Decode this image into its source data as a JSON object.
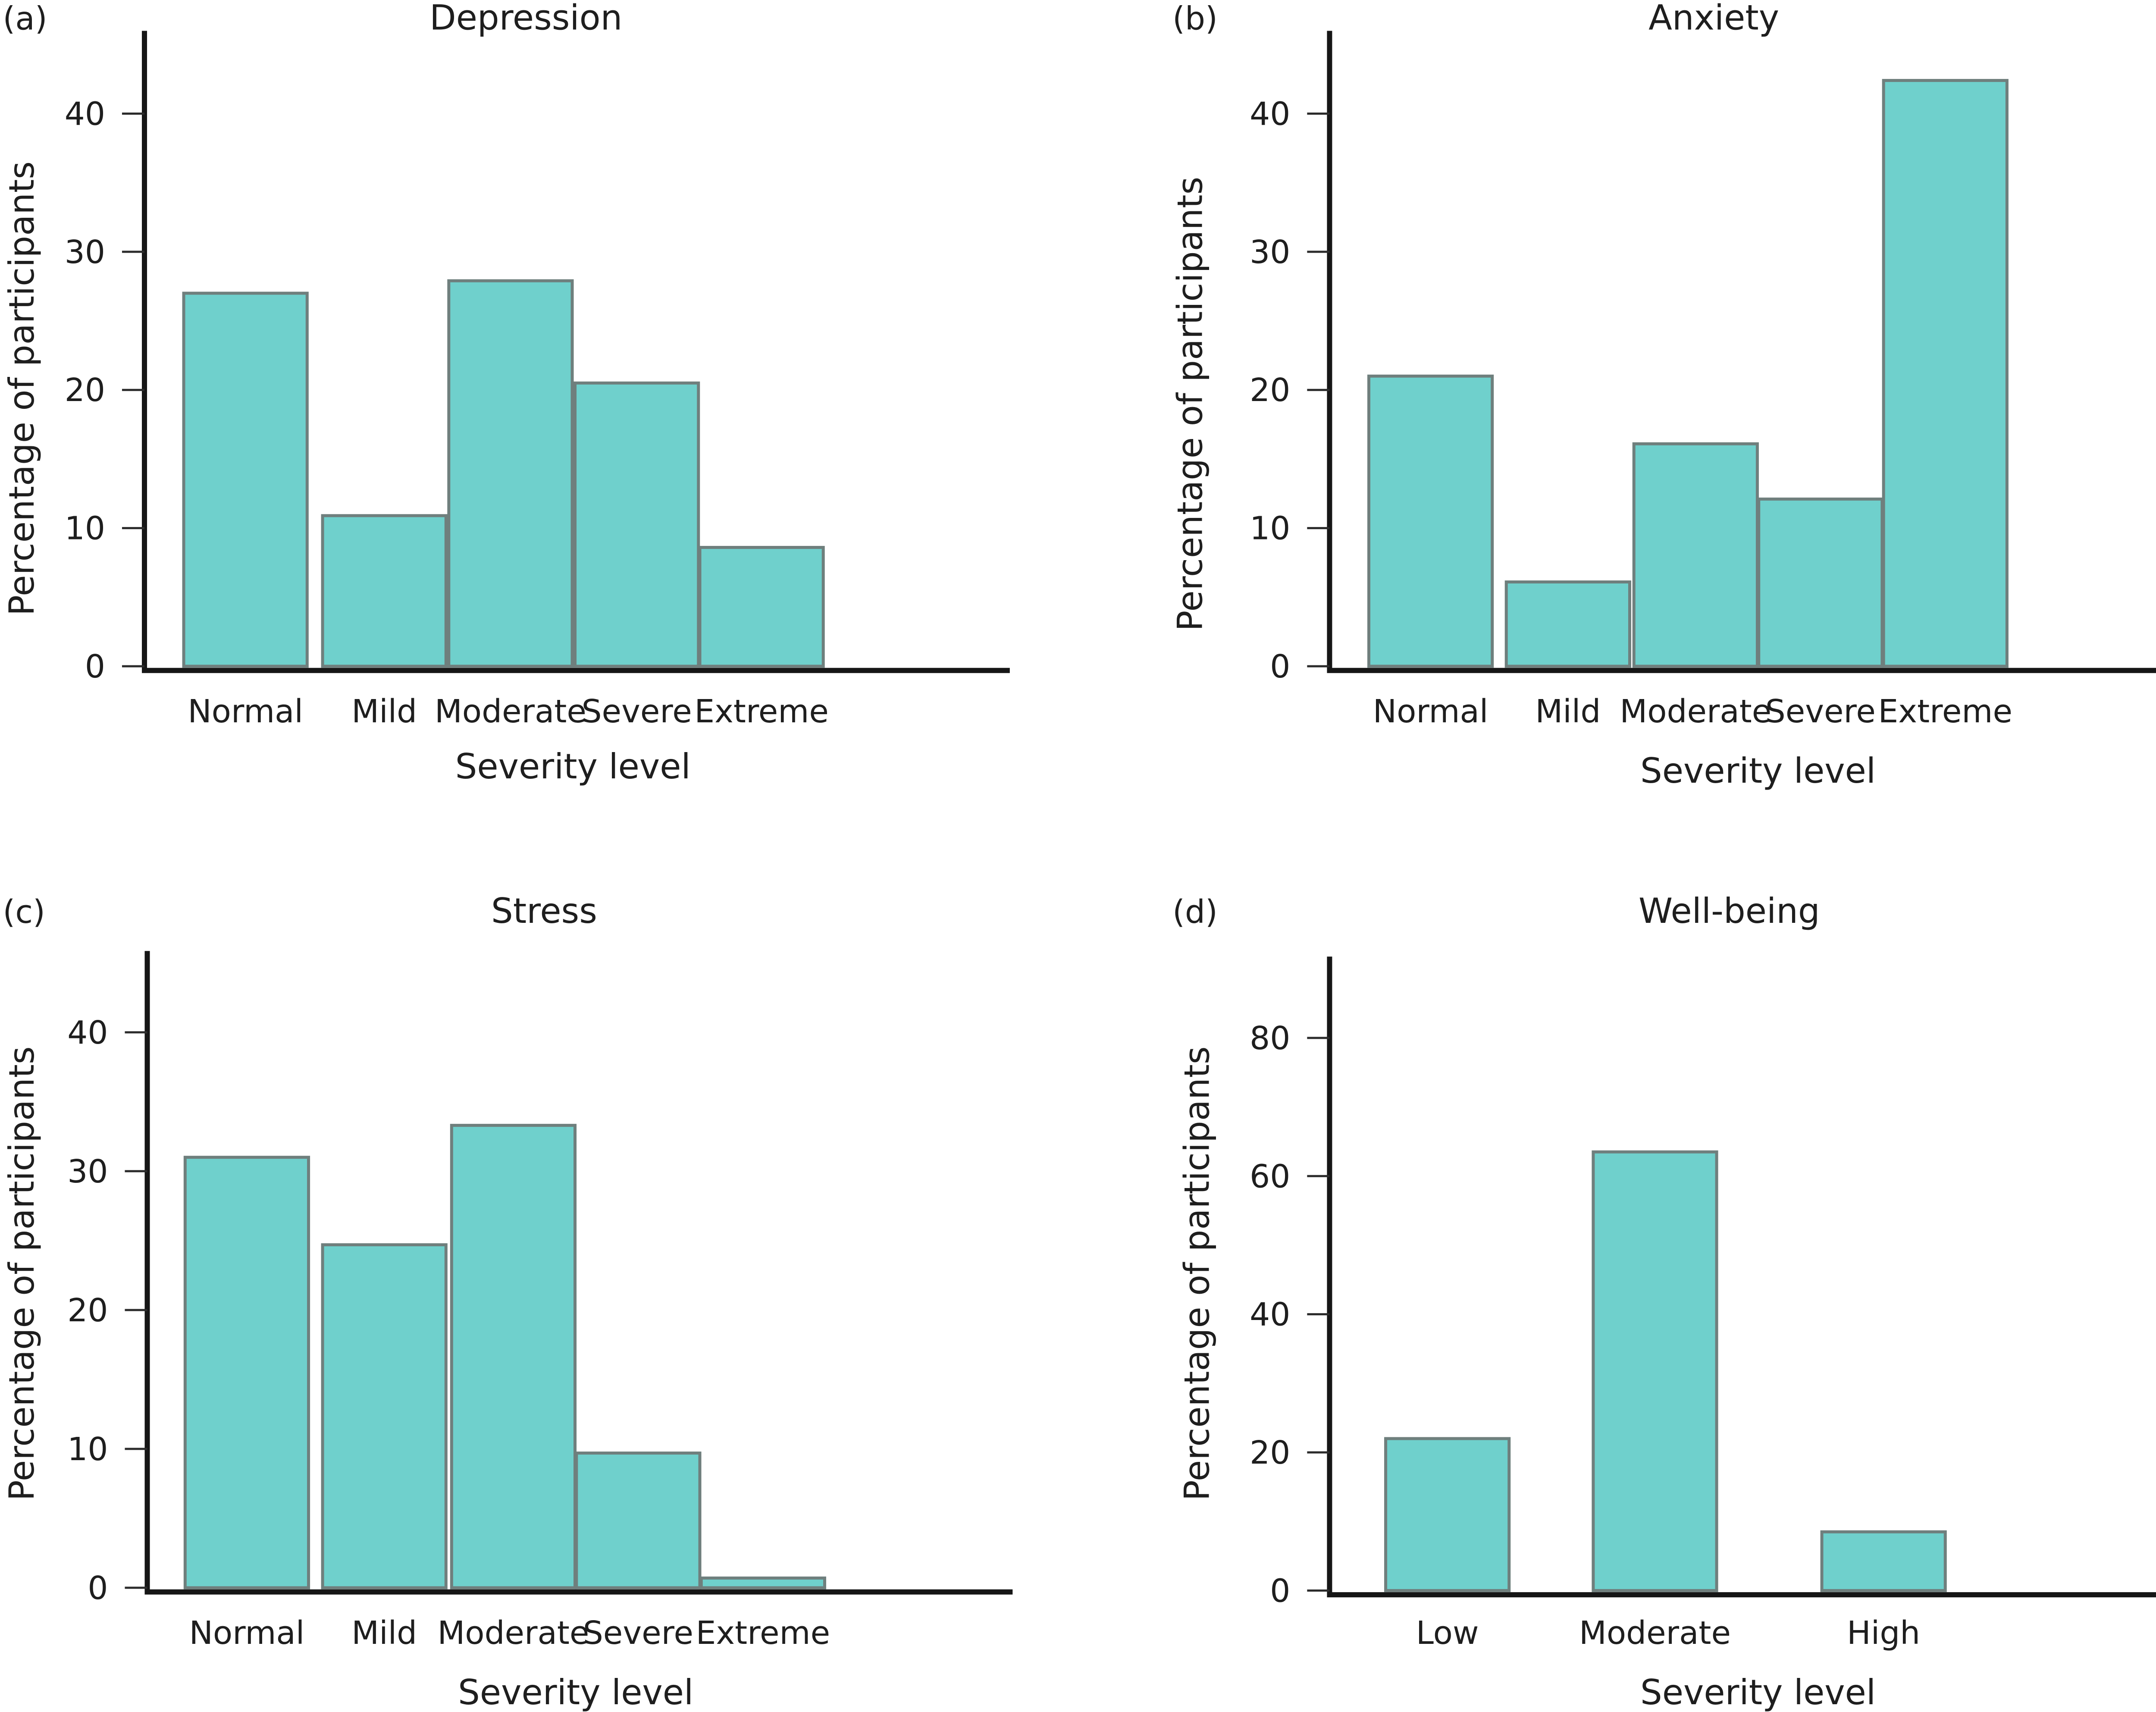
{
  "chart_data": [
    {
      "type": "bar",
      "panel": "(a)",
      "title": "Depression",
      "xlabel": "Severity level",
      "ylabel": "Percentage of participants",
      "ylim": [
        0,
        45
      ],
      "yticks": [
        0,
        10,
        20,
        30,
        40
      ],
      "categories": [
        "Normal",
        "Mild",
        "Moderate",
        "Severe",
        "Extreme"
      ],
      "values": [
        27.0,
        10.9,
        27.9,
        20.5,
        8.6
      ],
      "bar_color": "#6fd0cc",
      "grid": false
    },
    {
      "type": "bar",
      "panel": "(b)",
      "title": "Anxiety",
      "xlabel": "Severity level",
      "ylabel": "Percentage of participants",
      "ylim": [
        0,
        45
      ],
      "yticks": [
        0,
        10,
        20,
        30,
        40
      ],
      "categories": [
        "Normal",
        "Mild",
        "Moderate",
        "Severe",
        "Extreme"
      ],
      "values": [
        21.0,
        6.1,
        16.1,
        12.1,
        42.4
      ],
      "bar_color": "#6fd0cc",
      "grid": false
    },
    {
      "type": "bar",
      "panel": "(c)",
      "title": "Stress",
      "xlabel": "Severity level",
      "ylabel": "Percentage of participants",
      "ylim": [
        0,
        45
      ],
      "yticks": [
        0,
        10,
        20,
        30,
        40
      ],
      "categories": [
        "Normal",
        "Mild",
        "Moderate",
        "Severe",
        "Extreme"
      ],
      "values": [
        31.0,
        24.7,
        33.3,
        9.7,
        0.7
      ],
      "bar_color": "#6fd0cc",
      "grid": false
    },
    {
      "type": "bar",
      "panel": "(d)",
      "title": "Well-being",
      "xlabel": "Severity level",
      "ylabel": "Percentage of participants",
      "ylim": [
        0,
        90
      ],
      "yticks": [
        0,
        20,
        40,
        60,
        80
      ],
      "categories": [
        "Low",
        "Moderate",
        "High"
      ],
      "values": [
        22.0,
        63.5,
        8.5
      ],
      "bar_color": "#6fd0cc",
      "grid": false
    }
  ]
}
